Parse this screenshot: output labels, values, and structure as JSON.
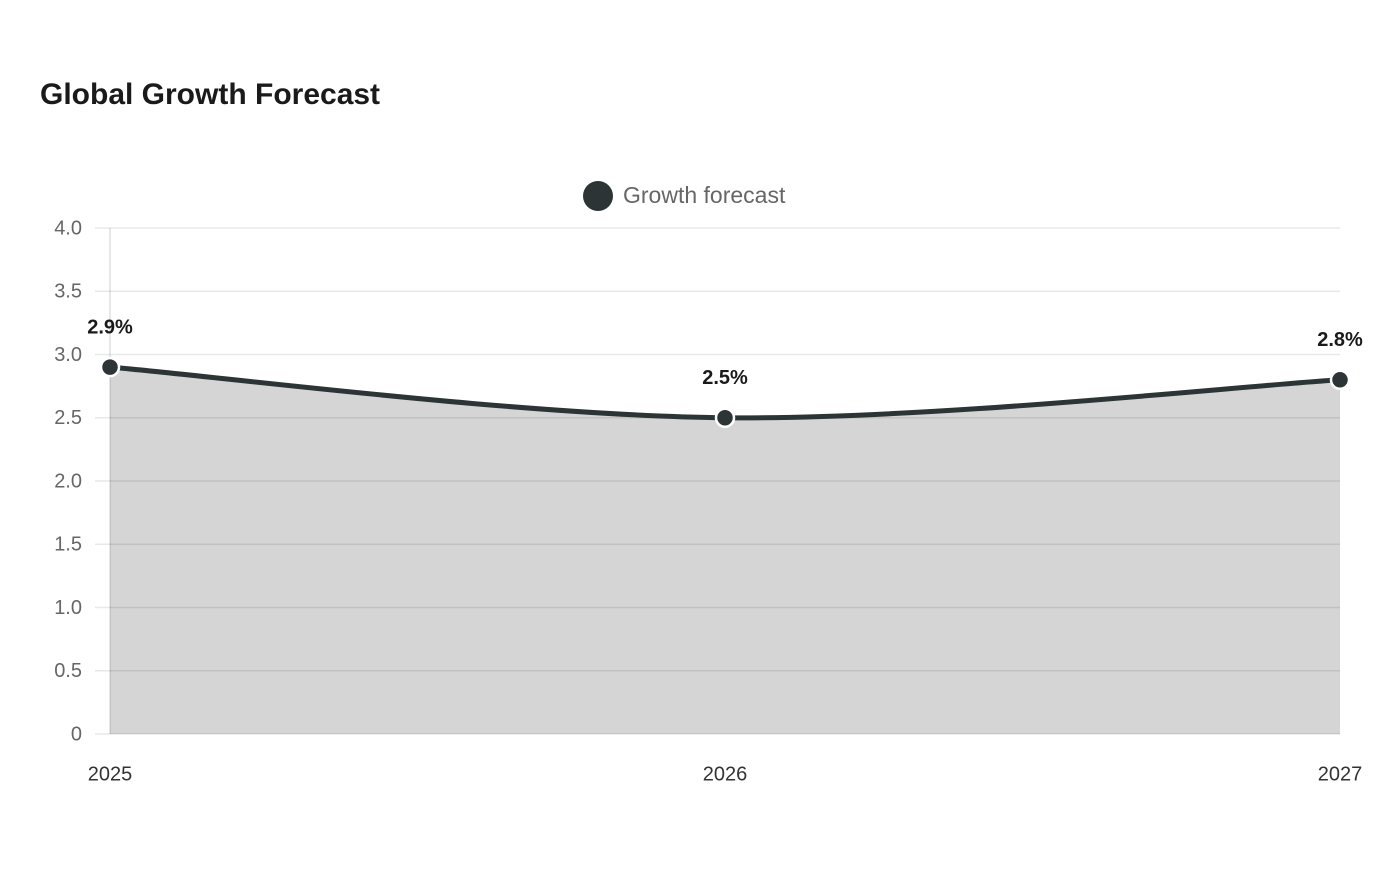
{
  "chart_data": {
    "type": "area",
    "title": "Global Growth Forecast",
    "categories": [
      "2025",
      "2026",
      "2027"
    ],
    "series": [
      {
        "name": "Growth forecast",
        "color": "#2c3436",
        "fill": "#d5d5d5",
        "values": [
          2.9,
          2.5,
          2.8
        ],
        "value_labels": [
          "2.9%",
          "2.5%",
          "2.8%"
        ]
      }
    ],
    "ylim": [
      0,
      4
    ],
    "yticks": [
      0,
      0.5,
      {
        "value": 1,
        "label": "1.0"
      },
      1.5,
      {
        "value": 2,
        "label": "2.0"
      },
      2.5,
      {
        "value": 3,
        "label": "3.0"
      },
      3.5,
      {
        "value": 4,
        "label": "4.0"
      }
    ],
    "grid": true,
    "legend": "top",
    "smooth": true
  }
}
